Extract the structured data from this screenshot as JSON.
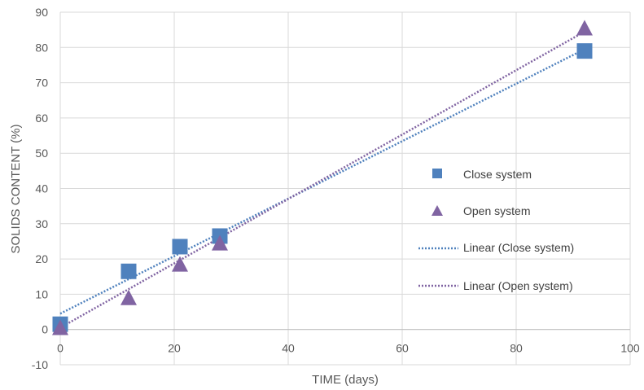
{
  "chart_data": {
    "type": "scatter",
    "xlabel": "TIME (days)",
    "ylabel": "SOLIDS CONTENT (%)",
    "xlim": [
      0,
      100
    ],
    "ylim": [
      -10,
      90
    ],
    "xticks": [
      0,
      20,
      40,
      60,
      80,
      100
    ],
    "yticks": [
      -10,
      0,
      10,
      20,
      30,
      40,
      50,
      60,
      70,
      80,
      90
    ],
    "grid": true,
    "legend_position": "right",
    "series": [
      {
        "name": "Close system",
        "marker": "square",
        "color": "#4f81bd",
        "x": [
          0,
          12,
          21,
          28,
          92
        ],
        "y": [
          1.5,
          16.5,
          23.5,
          26.5,
          79
        ]
      },
      {
        "name": "Open system",
        "marker": "triangle",
        "color": "#8064a2",
        "x": [
          0,
          12,
          21,
          28,
          92
        ],
        "y": [
          0.5,
          9,
          18.5,
          24.5,
          85.5
        ]
      }
    ],
    "trendlines": [
      {
        "name": "Linear (Close system)",
        "type": "linear",
        "color": "#4f81bd",
        "from": [
          0,
          4.5
        ],
        "to": [
          92,
          79.5
        ]
      },
      {
        "name": "Linear (Open system)",
        "type": "linear",
        "color": "#8064a2",
        "from": [
          0,
          0.5
        ],
        "to": [
          92,
          84.5
        ]
      }
    ]
  }
}
